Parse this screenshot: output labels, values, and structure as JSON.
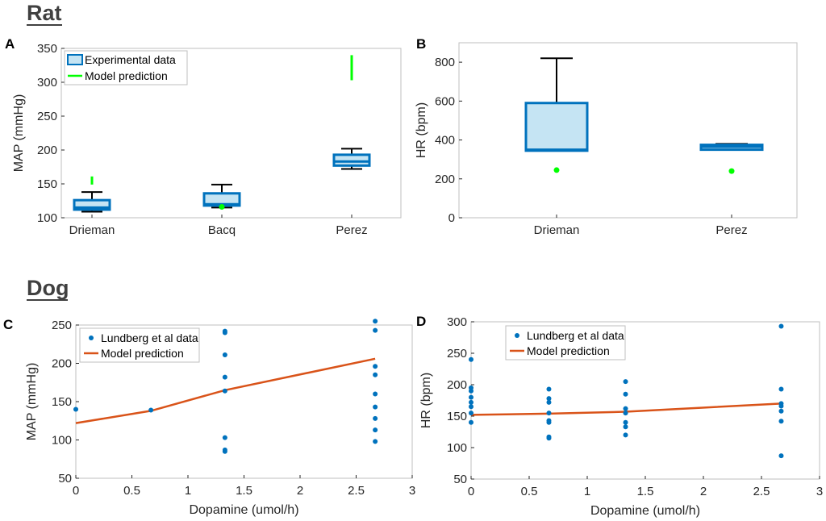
{
  "sections": {
    "rat": "Rat",
    "dog": "Dog"
  },
  "colors": {
    "box_fill": "#c5e4f3",
    "box_edge": "#0072bd",
    "whisker": "#000000",
    "model_green": "#00ff00",
    "dot_blue": "#0072bd",
    "line_orange": "#d95319",
    "axis": "#bfbfbf",
    "text": "#262626"
  },
  "chart_data": [
    {
      "id": "A",
      "type": "box",
      "panel_label": "A",
      "ylabel": "MAP (mmHg)",
      "xlabel": "",
      "ylim": [
        100,
        350
      ],
      "yticks": [
        "100",
        "150",
        "200",
        "250",
        "300",
        "350"
      ],
      "categories": [
        "Drieman",
        "Bacq",
        "Perez"
      ],
      "boxes": [
        {
          "q1": 112,
          "median": 115,
          "q3": 126,
          "whisker_low": 109,
          "whisker_high": 138
        },
        {
          "q1": 118,
          "median": 120,
          "q3": 136,
          "whisker_low": 115,
          "whisker_high": 149
        },
        {
          "q1": 177,
          "median": 183,
          "q3": 193,
          "whisker_low": 172,
          "whisker_high": 202
        }
      ],
      "model": [
        {
          "kind": "range",
          "low": 149,
          "high": 161
        },
        {
          "kind": "point",
          "value": 116
        },
        {
          "kind": "range",
          "low": 303,
          "high": 340
        }
      ],
      "legend": [
        "Experimental data",
        "Model prediction"
      ]
    },
    {
      "id": "B",
      "type": "box",
      "panel_label": "B",
      "ylabel": "HR (bpm)",
      "xlabel": "",
      "ylim": [
        0,
        900
      ],
      "yticks": [
        "0",
        "200",
        "400",
        "600",
        "800"
      ],
      "categories": [
        "Drieman",
        "Perez"
      ],
      "boxes": [
        {
          "q1": 345,
          "median": 350,
          "q3": 590,
          "whisker_low": 345,
          "whisker_high": 820
        },
        {
          "q1": 350,
          "median": 365,
          "q3": 375,
          "whisker_low": 350,
          "whisker_high": 380
        }
      ],
      "model": [
        {
          "kind": "point",
          "value": 245
        },
        {
          "kind": "point",
          "value": 240
        }
      ],
      "legend": []
    },
    {
      "id": "C",
      "type": "scatter+line",
      "panel_label": "C",
      "ylabel": "MAP (mmHg)",
      "xlabel": "Dopamine (umol/h)",
      "xlim": [
        0,
        3
      ],
      "ylim": [
        50,
        250
      ],
      "xticks": [
        "0",
        "0.5",
        "1",
        "1.5",
        "2",
        "2.5",
        "3"
      ],
      "yticks": [
        "50",
        "100",
        "150",
        "200",
        "250"
      ],
      "scatter": {
        "name": "Lundberg et al data",
        "points": [
          [
            0,
            140
          ],
          [
            0.67,
            139
          ],
          [
            1.33,
            242
          ],
          [
            1.33,
            240
          ],
          [
            1.33,
            211
          ],
          [
            1.33,
            182
          ],
          [
            1.33,
            164
          ],
          [
            1.33,
            103
          ],
          [
            1.33,
            87
          ],
          [
            1.33,
            85
          ],
          [
            2.67,
            255
          ],
          [
            2.67,
            243
          ],
          [
            2.67,
            196
          ],
          [
            2.67,
            185
          ],
          [
            2.67,
            160
          ],
          [
            2.67,
            143
          ],
          [
            2.67,
            128
          ],
          [
            2.67,
            113
          ],
          [
            2.67,
            98
          ]
        ]
      },
      "line": {
        "name": "Model prediction",
        "points": [
          [
            0,
            122
          ],
          [
            0.67,
            138
          ],
          [
            1.33,
            165
          ],
          [
            2.67,
            206
          ]
        ]
      },
      "legend": [
        "Lundberg et al data",
        "Model prediction"
      ]
    },
    {
      "id": "D",
      "type": "scatter+line",
      "panel_label": "D",
      "ylabel": "HR (bpm)",
      "xlabel": "Dopamine (umol/h)",
      "xlim": [
        0,
        3
      ],
      "ylim": [
        50,
        300
      ],
      "xticks": [
        "0",
        "0.5",
        "1",
        "1.5",
        "2",
        "2.5",
        "3"
      ],
      "yticks": [
        "50",
        "100",
        "150",
        "200",
        "250",
        "300"
      ],
      "scatter": {
        "name": "Lundberg et al data",
        "points": [
          [
            0,
            240
          ],
          [
            0,
            195
          ],
          [
            0,
            190
          ],
          [
            0,
            180
          ],
          [
            0,
            172
          ],
          [
            0,
            165
          ],
          [
            0,
            155
          ],
          [
            0,
            140
          ],
          [
            0.67,
            193
          ],
          [
            0.67,
            178
          ],
          [
            0.67,
            172
          ],
          [
            0.67,
            155
          ],
          [
            0.67,
            143
          ],
          [
            0.67,
            140
          ],
          [
            0.67,
            117
          ],
          [
            0.67,
            115
          ],
          [
            1.33,
            205
          ],
          [
            1.33,
            185
          ],
          [
            1.33,
            162
          ],
          [
            1.33,
            155
          ],
          [
            1.33,
            140
          ],
          [
            1.33,
            133
          ],
          [
            1.33,
            120
          ],
          [
            2.67,
            293
          ],
          [
            2.67,
            193
          ],
          [
            2.67,
            170
          ],
          [
            2.67,
            166
          ],
          [
            2.67,
            158
          ],
          [
            2.67,
            142
          ],
          [
            2.67,
            87
          ]
        ]
      },
      "line": {
        "name": "Model prediction",
        "points": [
          [
            0,
            152
          ],
          [
            0.67,
            154
          ],
          [
            1.33,
            157
          ],
          [
            2.67,
            170
          ]
        ]
      },
      "legend": [
        "Lundberg et al data",
        "Model prediction"
      ]
    }
  ]
}
